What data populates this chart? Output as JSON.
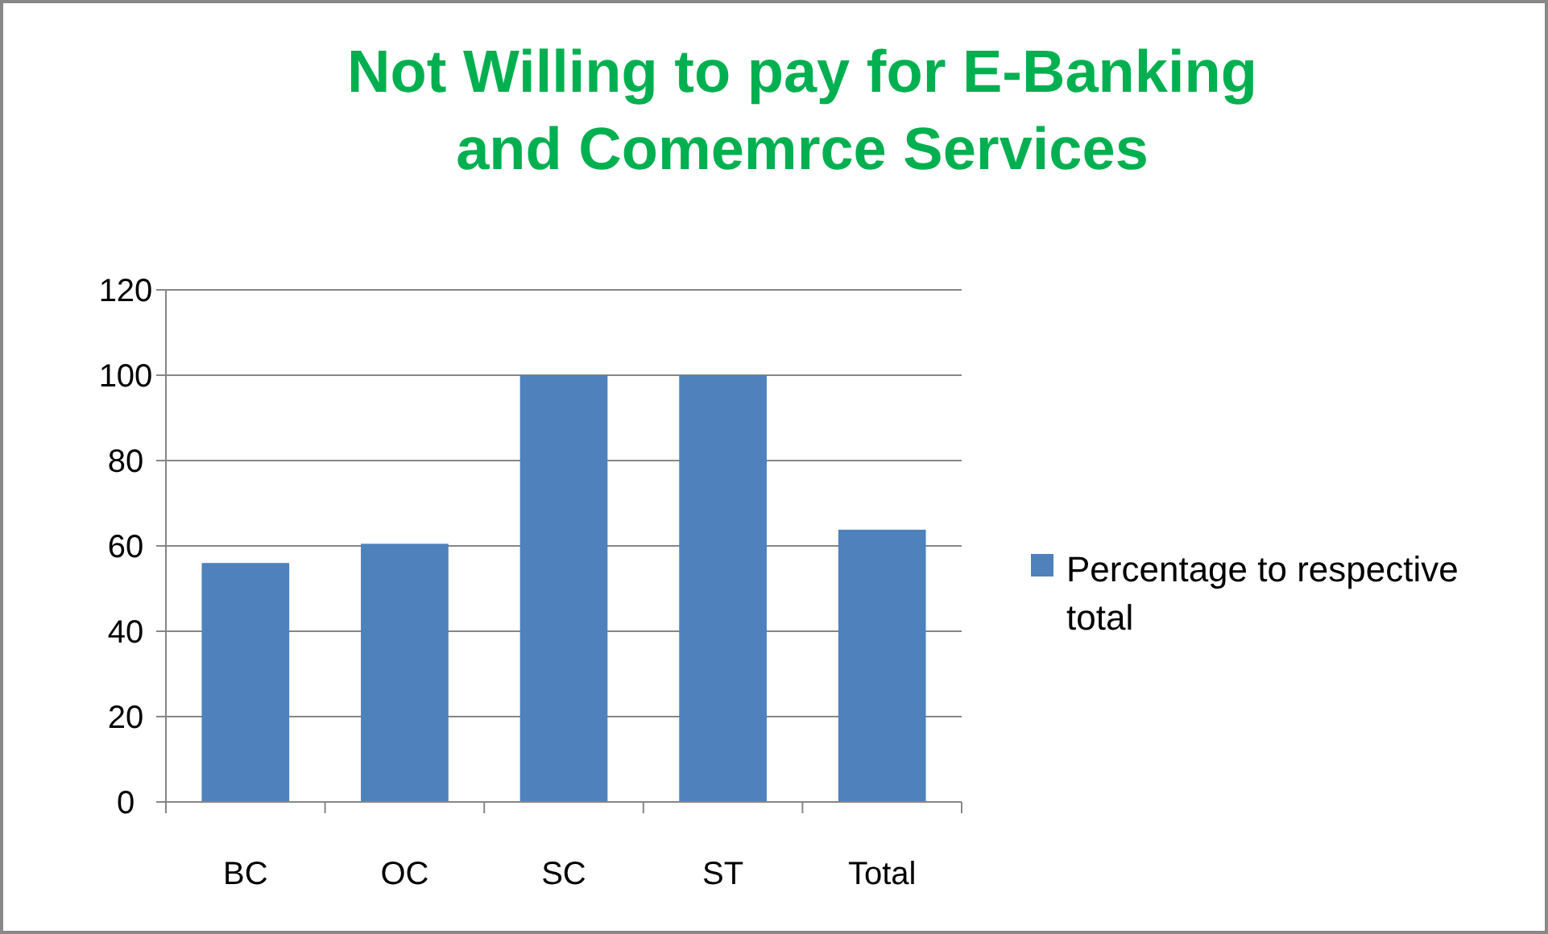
{
  "chart_data": {
    "type": "bar",
    "title": "Not Willing to pay for E-Banking and Comemrce Services",
    "categories": [
      "BC",
      "OC",
      "SC",
      "ST",
      "Total"
    ],
    "series": [
      {
        "name": "Percentage to respective total",
        "color": "#4f81bd",
        "values": [
          56,
          60.5,
          100,
          100,
          63.8
        ]
      }
    ],
    "ylim": [
      0,
      120
    ],
    "yticks": [
      0,
      20,
      40,
      60,
      80,
      100,
      120
    ],
    "grid": "y",
    "legend": "right"
  }
}
